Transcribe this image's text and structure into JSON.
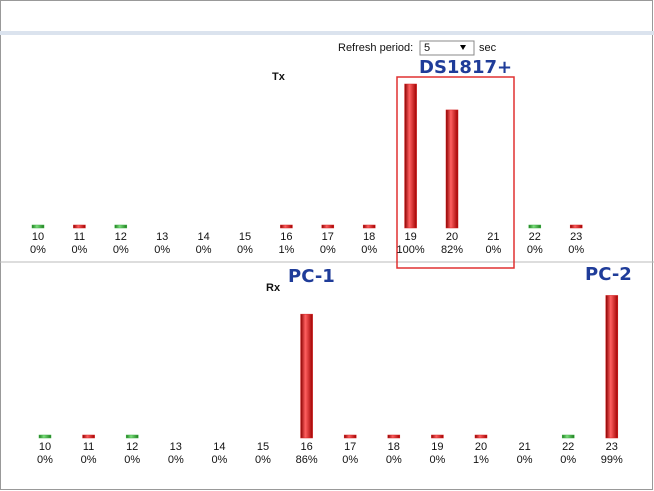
{
  "refresh": {
    "label": "Refresh period:",
    "value": "5",
    "unit": "sec"
  },
  "annotations": {
    "nas": "DS1817+",
    "pc1": "PC-1",
    "pc2": "PC-2"
  },
  "chart_data": [
    {
      "type": "bar",
      "title": "Tx",
      "categories": [
        "10",
        "11",
        "12",
        "13",
        "14",
        "15",
        "16",
        "17",
        "18",
        "19",
        "20",
        "21",
        "22",
        "23"
      ],
      "values": [
        0,
        0,
        0,
        0,
        0,
        0,
        1,
        0,
        0,
        100,
        82,
        0,
        0,
        0
      ],
      "value_labels": [
        "0%",
        "0%",
        "0%",
        "0%",
        "0%",
        "0%",
        "1%",
        "0%",
        "0%",
        "100%",
        "82%",
        "0%",
        "0%",
        "0%"
      ],
      "colors": [
        "#3cb043",
        "#d42020",
        "#3cb043",
        null,
        null,
        null,
        "#d42020",
        "#d42020",
        "#d42020",
        "#d42020",
        "#d42020",
        null,
        "#3cb043",
        "#d42020"
      ],
      "ylim": [
        0,
        100
      ]
    },
    {
      "type": "bar",
      "title": "Rx",
      "categories": [
        "10",
        "11",
        "12",
        "13",
        "14",
        "15",
        "16",
        "17",
        "18",
        "19",
        "20",
        "21",
        "22",
        "23"
      ],
      "values": [
        0,
        0,
        0,
        0,
        0,
        0,
        86,
        0,
        0,
        0,
        1,
        0,
        0,
        99
      ],
      "value_labels": [
        "0%",
        "0%",
        "0%",
        "0%",
        "0%",
        "0%",
        "86%",
        "0%",
        "0%",
        "0%",
        "1%",
        "0%",
        "0%",
        "99%"
      ],
      "colors": [
        "#3cb043",
        "#d42020",
        "#3cb043",
        null,
        null,
        null,
        "#d42020",
        "#d42020",
        "#d42020",
        "#d42020",
        "#d42020",
        null,
        "#3cb043",
        "#d42020"
      ],
      "ylim": [
        0,
        100
      ]
    }
  ]
}
